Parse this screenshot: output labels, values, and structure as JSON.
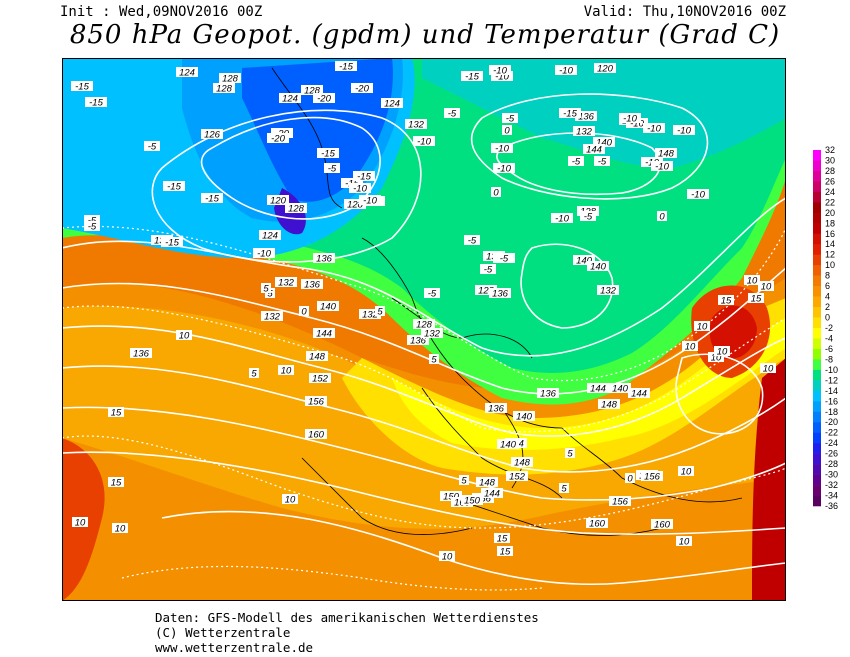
{
  "header": {
    "init": "Init : Wed,09NOV2016 00Z",
    "valid": "Valid: Thu,10NOV2016 00Z",
    "title": "850 hPa Geopot. (gpdm) und Temperatur (Grad C)"
  },
  "footer": {
    "line1": "Daten: GFS-Modell des amerikanischen Wetterdienstes",
    "line2": "(C) Wetterzentrale",
    "line3": "www.wetterzentrale.de"
  },
  "colorbar": {
    "labels": [
      "32",
      "30",
      "28",
      "26",
      "24",
      "22",
      "20",
      "18",
      "16",
      "14",
      "12",
      "10",
      "8",
      "6",
      "4",
      "2",
      "0",
      "-2",
      "-4",
      "-6",
      "-8",
      "-10",
      "-12",
      "-14",
      "-16",
      "-18",
      "-20",
      "-22",
      "-24",
      "-26",
      "-28",
      "-30",
      "-32",
      "-34",
      "-36"
    ],
    "colors": [
      "#ff00ff",
      "#ee00cc",
      "#dd0099",
      "#cc0066",
      "#b80033",
      "#a00000",
      "#b00000",
      "#c00000",
      "#d41000",
      "#e02000",
      "#e84000",
      "#f06000",
      "#f47a00",
      "#f89000",
      "#fca800",
      "#ffc400",
      "#ffe000",
      "#ffff00",
      "#d0ff00",
      "#90ff00",
      "#40ff40",
      "#00e080",
      "#00d0c0",
      "#00c0ff",
      "#00a0ff",
      "#0080ff",
      "#0060ff",
      "#0040ff",
      "#2020ee",
      "#4010d0",
      "#5008b0",
      "#600090",
      "#6a0070",
      "#5a0060"
    ]
  },
  "map_labels": {
    "geopotential": [
      "124",
      "128",
      "128",
      "124",
      "128",
      "126",
      "132",
      "136",
      "136",
      "132",
      "124",
      "128",
      "120",
      "128",
      "124",
      "132",
      "132",
      "136",
      "140",
      "144",
      "148",
      "152",
      "156",
      "160",
      "132",
      "128",
      "132",
      "136",
      "140",
      "144",
      "148",
      "152",
      "150",
      "156",
      "160",
      "140",
      "144",
      "148",
      "152",
      "156",
      "160",
      "136",
      "132",
      "140",
      "136",
      "132",
      "128",
      "120",
      "132",
      "136",
      "140",
      "138",
      "128",
      "140",
      "144",
      "136",
      "140",
      "148",
      "144",
      "136",
      "156",
      "160",
      "150",
      "144",
      "148"
    ],
    "temperature": [
      "-15",
      "-15",
      "-20",
      "-15",
      "-20",
      "-15",
      "-20",
      "-15",
      "-5",
      "-15",
      "-15",
      "-5",
      "-15",
      "-5",
      "-10",
      "-10",
      "-10",
      "-5",
      "-10",
      "-15",
      "-10",
      "-20",
      "-15",
      "-5",
      "-10",
      "-10",
      "-10",
      "-5",
      "-10",
      "-10",
      "-10",
      "0",
      "-5",
      "-5",
      "-5",
      "0",
      "-5",
      "-5",
      "-5",
      "5",
      "5",
      "5",
      "0",
      "5",
      "5",
      "10",
      "10",
      "10",
      "10",
      "15",
      "15",
      "15",
      "15",
      "10",
      "10",
      "10",
      "10",
      "10",
      "10",
      "10",
      "10",
      "10",
      "15",
      "15",
      "10",
      "10",
      "5",
      "5",
      "5",
      "0",
      "0",
      "-5",
      "-10",
      "-10",
      "-10",
      "-10",
      "-10",
      "-15",
      "-10",
      "-10"
    ]
  }
}
